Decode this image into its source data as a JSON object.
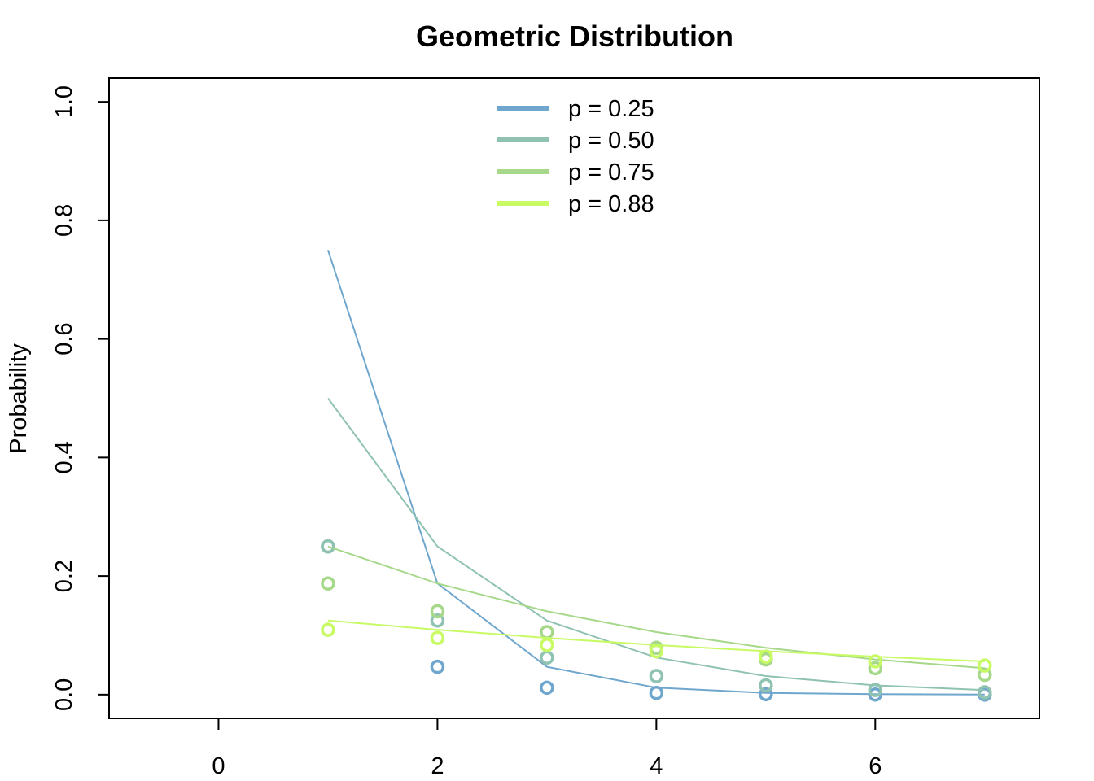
{
  "chart_data": {
    "type": "line",
    "title": "Geometric Distribution",
    "xlabel": "",
    "ylabel": "Probability",
    "xlim": [
      -1,
      7.5
    ],
    "ylim": [
      -0.04,
      1.04
    ],
    "xticks": [
      0,
      2,
      4,
      6
    ],
    "yticks": [
      0.0,
      0.2,
      0.4,
      0.6,
      0.8,
      1.0
    ],
    "xtick_labels": [
      "0",
      "2",
      "4",
      "6"
    ],
    "ytick_labels": [
      "0.0",
      "0.2",
      "0.4",
      "0.6",
      "0.8",
      "1.0"
    ],
    "grid": false,
    "legend_position": "top-center",
    "x": [
      1,
      2,
      3,
      4,
      5,
      6,
      7
    ],
    "series": [
      {
        "name": "p = 0.25",
        "color": "#6fa6cd",
        "line_values": [
          0.75,
          0.1875,
          0.0469,
          0.0117,
          0.0029,
          0.0007,
          0.0002
        ],
        "point_values": [
          0.25,
          0.0469,
          0.0117,
          0.0029,
          0.0007,
          0.0002,
          0.0
        ]
      },
      {
        "name": "p = 0.50",
        "color": "#8fc2b0",
        "line_values": [
          0.5,
          0.25,
          0.125,
          0.0625,
          0.0313,
          0.0156,
          0.0078
        ],
        "point_values": [
          0.25,
          0.125,
          0.0625,
          0.0313,
          0.0156,
          0.0078,
          0.0039
        ]
      },
      {
        "name": "p = 0.75",
        "color": "#a6d889",
        "line_values": [
          0.25,
          0.1875,
          0.1406,
          0.1055,
          0.0791,
          0.0593,
          0.0445
        ],
        "point_values": [
          0.1875,
          0.1406,
          0.1055,
          0.0791,
          0.0593,
          0.0445,
          0.0334
        ]
      },
      {
        "name": "p = 0.88",
        "color": "#c7fa63",
        "line_values": [
          0.125,
          0.1094,
          0.0957,
          0.0837,
          0.0733,
          0.0641,
          0.0561
        ],
        "point_values": [
          0.1094,
          0.0957,
          0.0837,
          0.0733,
          0.0641,
          0.0561,
          0.0491
        ]
      }
    ]
  }
}
